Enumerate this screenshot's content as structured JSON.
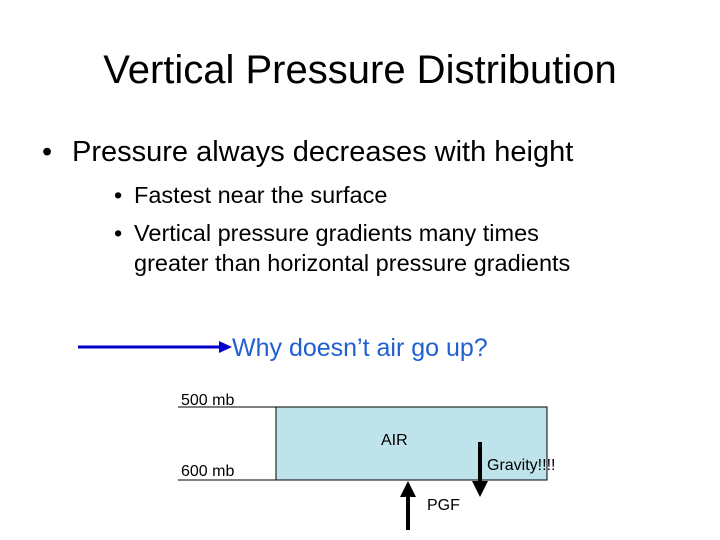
{
  "slide": {
    "title": "Vertical Pressure Distribution",
    "bullet_main": "Pressure always decreases with height",
    "bullet_mark": "•",
    "sub_bullets": [
      {
        "line1": "Fastest near the surface"
      },
      {
        "line1": "Vertical pressure gradients many times",
        "line2": "greater than horizontal pressure gradients"
      }
    ]
  },
  "diagram": {
    "question": "Why doesn’t air go up?",
    "question_color": "#1f5fd0",
    "arrow_color": "#0000cc",
    "label_500": "500 mb",
    "label_600": "600 mb",
    "air_label": "AIR",
    "gravity_label": "Gravity!!!!",
    "pgf_label": "PGF",
    "air_box_color": "#bfe3ea"
  }
}
